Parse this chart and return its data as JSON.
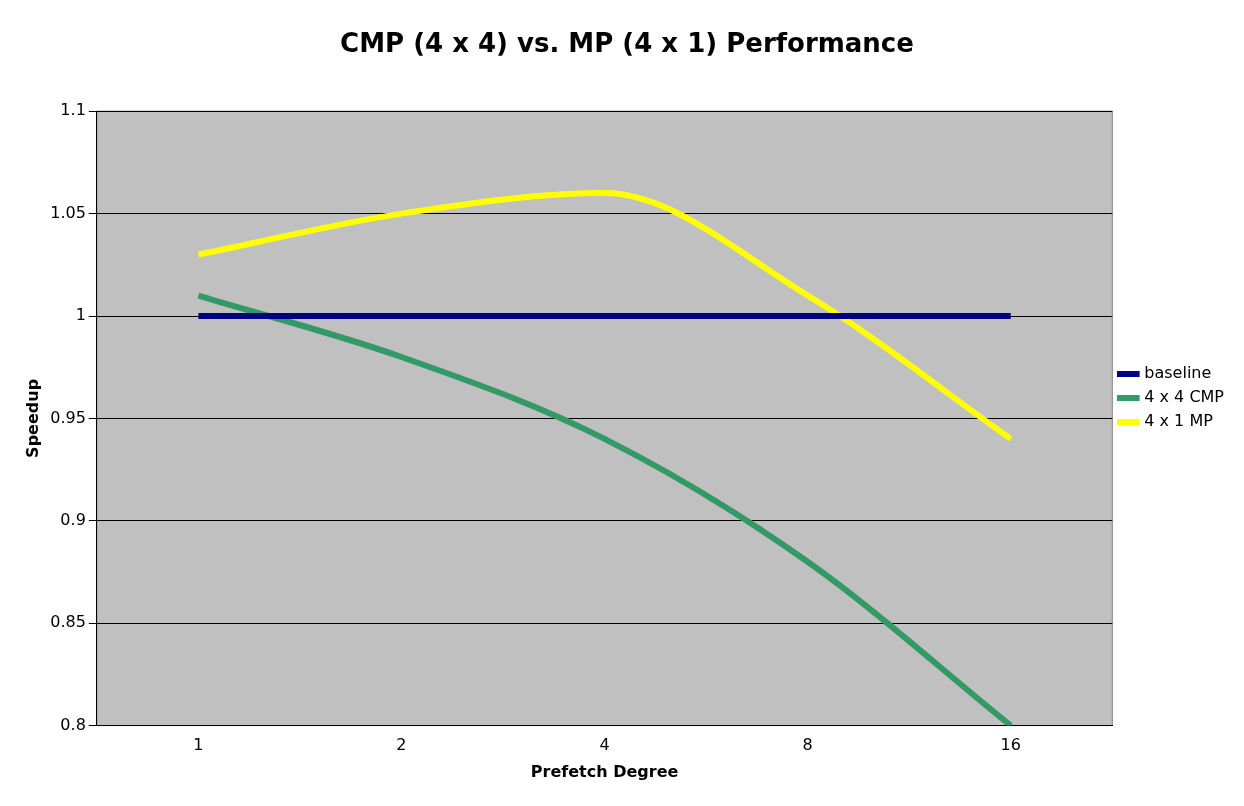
{
  "chart_data": {
    "type": "line",
    "title": "CMP (4 x 4) vs. MP (4 x 1) Performance",
    "xlabel": "Prefetch Degree",
    "ylabel": "Speedup",
    "categories": [
      "1",
      "2",
      "4",
      "8",
      "16"
    ],
    "series": [
      {
        "name": "baseline",
        "color": "#000080",
        "values": [
          1,
          1,
          1,
          1,
          1
        ]
      },
      {
        "name": "4 x 4 CMP",
        "color": "#339966",
        "values": [
          1.01,
          0.98,
          0.94,
          0.88,
          0.8
        ]
      },
      {
        "name": "4 x 1 MP",
        "color": "#ffff00",
        "values": [
          1.03,
          1.05,
          1.06,
          1.01,
          0.94
        ]
      }
    ],
    "ylim": [
      0.8,
      1.1
    ],
    "yticks": [
      0.8,
      0.85,
      0.9,
      0.95,
      1,
      1.05,
      1.1
    ],
    "grid": "y",
    "legend": "right",
    "marker": "none",
    "line_style": "solid"
  }
}
